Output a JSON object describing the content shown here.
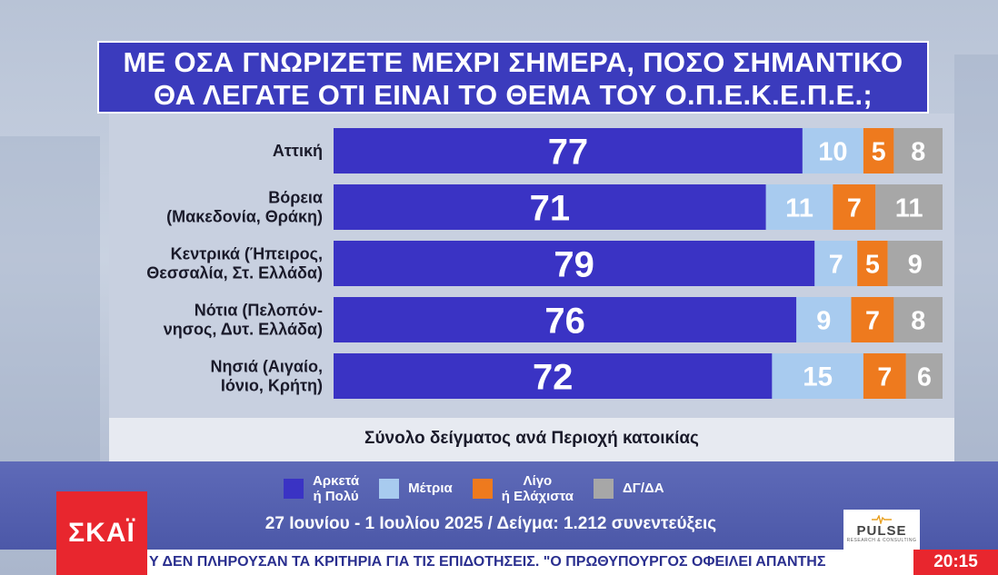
{
  "title": {
    "line1": "ΜΕ ΟΣΑ ΓΝΩΡΙΖΕΤΕ ΜΕΧΡΙ ΣΗΜΕΡΑ, ΠΟΣΟ ΣΗΜΑΝΤΙΚΟ",
    "line2": "ΘΑ ΛΕΓΑΤΕ ΟΤΙ ΕΙΝΑΙ ΤΟ ΘΕΜΑ ΤΟΥ Ο.Π.Ε.Κ.Ε.Π.Ε.;"
  },
  "chart_data": {
    "type": "bar",
    "orientation": "horizontal",
    "stacked": true,
    "subtitle": "Σύνολο δείγματος ανά Περιοχή κατοικίας",
    "categories": [
      [
        "Αττική"
      ],
      [
        "Βόρεια",
        "(Μακεδονία, Θράκη)"
      ],
      [
        "Κεντρικά (Ήπειρος,",
        "Θεσσαλία, Στ. Ελλάδα)"
      ],
      [
        "Νότια (Πελοπόν-",
        "νησος, Δυτ. Ελλάδα)"
      ],
      [
        "Νησιά (Αιγαίο,",
        "Ιόνιο, Κρήτη)"
      ]
    ],
    "series": [
      {
        "name": "Αρκετά ή Πολύ",
        "legend_lines": [
          "Αρκετά",
          "ή Πολύ"
        ],
        "color": "#3a33c4",
        "values": [
          77,
          71,
          79,
          76,
          72
        ]
      },
      {
        "name": "Μέτρια",
        "legend_lines": [
          "Μέτρια"
        ],
        "color": "#a8cbef",
        "values": [
          10,
          11,
          7,
          9,
          15
        ]
      },
      {
        "name": "Λίγο ή Ελάχιστα",
        "legend_lines": [
          "Λίγο",
          "ή Ελάχιστα"
        ],
        "color": "#ee7a1e",
        "values": [
          5,
          7,
          5,
          7,
          7
        ]
      },
      {
        "name": "ΔΓ/ΔΑ",
        "legend_lines": [
          "ΔΓ/ΔΑ"
        ],
        "color": "#a7a7a7",
        "values": [
          8,
          11,
          9,
          8,
          6
        ]
      }
    ],
    "xlim": [
      0,
      100
    ],
    "grid": false,
    "legend_position": "bottom"
  },
  "footer": {
    "info": "27 Ιουνίου - 1 Ιουλίου 2025 / Δείγμα: 1.212 συνεντεύξεις",
    "channel_logo": "ΣΚΑΪ",
    "pollster_logo": "PULSE",
    "pollster_sub": "RESEARCH & CONSULTING",
    "ticker": "Υ ΔΕΝ ΠΛΗΡΟΥΣΑΝ ΤΑ ΚΡΙΤΗΡΙΑ ΓΙΑ ΤΙΣ ΕΠΙΔΟΤΗΣΕΙΣ. \"Ο ΠΡΩΘΥΠΟΥΡΓΟΣ ΟΦΕΙΛΕΙ ΑΠΑΝΤΗΣ",
    "clock": "20:15"
  }
}
